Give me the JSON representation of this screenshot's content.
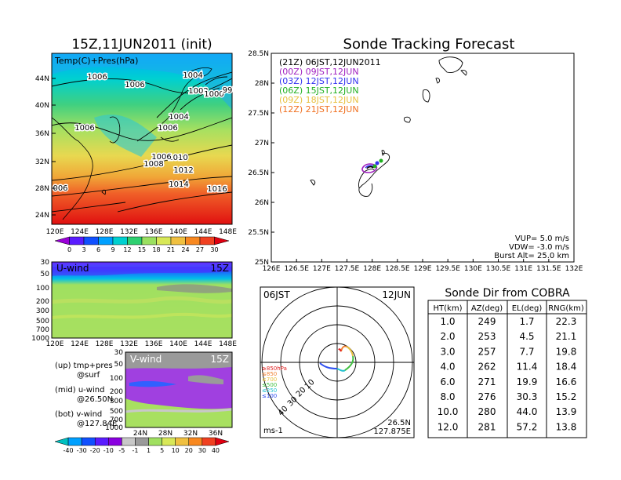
{
  "left": {
    "title": "15Z,11JUN2011 (init)",
    "top_map": {
      "label": "Temp(C)+Pres(hPa)",
      "lat_ticks": [
        "44N",
        "40N",
        "36N",
        "32N",
        "28N",
        "24N"
      ],
      "lon_ticks": [
        "120E",
        "124E",
        "128E",
        "132E",
        "136E",
        "140E",
        "144E",
        "148E"
      ],
      "isobar_labels": [
        "1006",
        "1006",
        "1004",
        "1002",
        "1000",
        "99",
        "1006",
        "1004",
        "1006",
        "1010",
        "1008",
        "1006",
        "1012",
        "1014",
        "1016",
        "006"
      ],
      "colorbar_ticks": [
        "0",
        "3",
        "6",
        "9",
        "12",
        "15",
        "18",
        "21",
        "24",
        "27",
        "30"
      ],
      "colorbar_colors": [
        "#9a00d8",
        "#5a1cff",
        "#1050ff",
        "#00a0ff",
        "#00d0d0",
        "#2ed070",
        "#9ae060",
        "#d8e858",
        "#f0c040",
        "#f88820",
        "#f04020",
        "#e00010"
      ]
    },
    "u_wind": {
      "label": "U-wind",
      "time": "15Z",
      "p_ticks": [
        "30",
        "50",
        "100",
        "200",
        "300",
        "500",
        "700",
        "1000"
      ],
      "lon_ticks": [
        "120E",
        "124E",
        "128E",
        "132E",
        "136E",
        "140E",
        "144E",
        "148E"
      ]
    },
    "v_wind": {
      "label": "V-wind",
      "time": "15Z",
      "p_ticks": [
        "30",
        "50",
        "100",
        "200",
        "300",
        "500",
        "700",
        "1000"
      ],
      "lat_ticks": [
        "24N",
        "28N",
        "32N",
        "36N"
      ]
    },
    "legend_lines": [
      "(up) tmp+pres",
      "@surf",
      "(mid) u-wind",
      "@26.50N",
      "(bot) v-wind",
      "@127.84E"
    ],
    "wind_colorbar_ticks": [
      "-40",
      "-30",
      "-20",
      "-10",
      "-5",
      "-1",
      "1",
      "5",
      "10",
      "20",
      "30",
      "40"
    ],
    "wind_colorbar_colors": [
      "#00c0c0",
      "#00a0ff",
      "#1050ff",
      "#5a1cff",
      "#8a00e0",
      "#c8c8c8",
      "#9a9a9a",
      "#a0e060",
      "#d8e858",
      "#f0c040",
      "#f88820",
      "#f04020",
      "#e00010"
    ]
  },
  "forecast": {
    "title": "Sonde Tracking Forecast",
    "lat_ticks": [
      "28.5N",
      "28N",
      "27.5N",
      "27N",
      "26.5N",
      "26N",
      "25.5N",
      "25N"
    ],
    "lon_ticks": [
      "126E",
      "126.5E",
      "127E",
      "127.5E",
      "128E",
      "128.5E",
      "129E",
      "129.5E",
      "130E",
      "130.5E",
      "131E",
      "131.5E",
      "132E"
    ],
    "legend": [
      {
        "text": "(21Z)  06JST,12JUN2011",
        "color": "#000000"
      },
      {
        "text": "(00Z)  09JST,12JUN",
        "color": "#a020c0"
      },
      {
        "text": "(03Z)  12JST,12JUN",
        "color": "#3030f0"
      },
      {
        "text": "(06Z)  15JST,12JUN",
        "color": "#20b020"
      },
      {
        "text": "(09Z)  18JST,12JUN",
        "color": "#e8c040"
      },
      {
        "text": "(12Z)  21JST,12JUN",
        "color": "#f07020"
      }
    ],
    "params": [
      "VUP=  5.0  m/s",
      "VDW= -3.0  m/s",
      "Burst Alt=  25.0  km"
    ]
  },
  "polar": {
    "time_label": "06JST",
    "date_label": "12JUN",
    "ring_labels": [
      "10",
      "20",
      "30",
      "40"
    ],
    "alt_legend": [
      {
        "text": "≥850hPa",
        "color": "#e02020"
      },
      {
        "text": "≤850",
        "color": "#f08030"
      },
      {
        "text": "≤700",
        "color": "#e8c040"
      },
      {
        "text": "≤500",
        "color": "#40c040"
      },
      {
        "text": "≤250",
        "color": "#20c0d0"
      },
      {
        "text": "≤100",
        "color": "#3050f0"
      }
    ],
    "units": "ms-1",
    "loc_lat": "26.5N",
    "loc_lon": "127.875E"
  },
  "table": {
    "title": "Sonde Dir from COBRA",
    "headers": [
      "HT(km)",
      "AZ(deg)",
      "EL(deg)",
      "RNG(km)"
    ],
    "rows": [
      [
        "1.0",
        "249",
        "1.7",
        "22.3"
      ],
      [
        "2.0",
        "253",
        "4.5",
        "21.1"
      ],
      [
        "3.0",
        "257",
        "7.7",
        "19.8"
      ],
      [
        "4.0",
        "262",
        "11.4",
        "18.4"
      ],
      [
        "6.0",
        "271",
        "19.9",
        "16.6"
      ],
      [
        "8.0",
        "276",
        "30.3",
        "15.2"
      ],
      [
        "10.0",
        "280",
        "44.0",
        "13.9"
      ],
      [
        "12.0",
        "281",
        "57.2",
        "13.8"
      ]
    ]
  },
  "chart_data": [
    {
      "type": "heatmap",
      "title": "15Z,11JUN2011 (init)",
      "label": "Temp(C)+Pres(hPa)",
      "x_ticks": [
        "120E",
        "124E",
        "128E",
        "132E",
        "136E",
        "140E",
        "144E",
        "148E"
      ],
      "y_ticks": [
        "24N",
        "28N",
        "32N",
        "36N",
        "40N",
        "44N"
      ],
      "colorbar": [
        "0",
        "3",
        "6",
        "9",
        "12",
        "15",
        "18",
        "21",
        "24",
        "27",
        "30"
      ]
    },
    {
      "type": "heatmap",
      "label": "U-wind",
      "y_ticks": [
        "30",
        "50",
        "100",
        "200",
        "300",
        "500",
        "700",
        "1000"
      ],
      "x_ticks": [
        "120E",
        "124E",
        "128E",
        "132E",
        "136E",
        "140E",
        "144E",
        "148E"
      ]
    },
    {
      "type": "heatmap",
      "label": "V-wind",
      "y_ticks": [
        "30",
        "50",
        "100",
        "200",
        "300",
        "500",
        "700",
        "1000"
      ],
      "x_ticks": [
        "24N",
        "28N",
        "32N",
        "36N"
      ],
      "colorbar": [
        "-40",
        "-30",
        "-20",
        "-10",
        "-5",
        "-1",
        "1",
        "5",
        "10",
        "20",
        "30",
        "40"
      ]
    },
    {
      "type": "table",
      "title": "Sonde Dir from COBRA",
      "columns": [
        "HT(km)",
        "AZ(deg)",
        "EL(deg)",
        "RNG(km)"
      ],
      "rows": [
        [
          1.0,
          249,
          1.7,
          22.3
        ],
        [
          2.0,
          253,
          4.5,
          21.1
        ],
        [
          3.0,
          257,
          7.7,
          19.8
        ],
        [
          4.0,
          262,
          11.4,
          18.4
        ],
        [
          6.0,
          271,
          19.9,
          16.6
        ],
        [
          8.0,
          276,
          30.3,
          15.2
        ],
        [
          10.0,
          280,
          44.0,
          13.9
        ],
        [
          12.0,
          281,
          57.2,
          13.8
        ]
      ]
    }
  ]
}
